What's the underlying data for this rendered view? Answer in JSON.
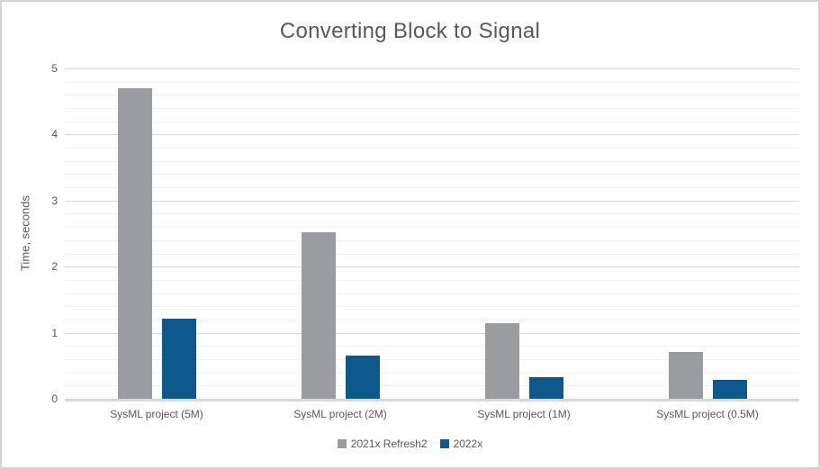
{
  "title": "Converting Block to Signal",
  "colors": {
    "title_text": "#595959",
    "axis_text": "#595959",
    "gridline_major": "#D9D9D9",
    "gridline_minor": "#F2F2F2",
    "axis_line": "#D9D9D9",
    "frame_border": "#D3D3D3",
    "background": "#FFFFFF",
    "series_2021x_refresh2": "#9A9CA0",
    "series_2022x": "#0E598C"
  },
  "chart_data": {
    "type": "bar",
    "title": "Converting Block to Signal",
    "xlabel": "",
    "ylabel": "Time, seconds",
    "ylim": [
      0,
      5
    ],
    "ytick_labels": [
      "0",
      "1",
      "2",
      "3",
      "4",
      "5"
    ],
    "major_gridline_step": 1,
    "minor_gridline_step": 0.2,
    "grid": "horizontal",
    "legend_position": "bottom",
    "categories": [
      "SysML project (5M)",
      "SysML project (2M)",
      "SysML project (1M)",
      "SysML project (0.5M)"
    ],
    "series": [
      {
        "name": "2021x Refresh2",
        "color": "#9A9CA0",
        "values": [
          4.7,
          2.52,
          1.14,
          0.71
        ]
      },
      {
        "name": "2022x",
        "color": "#0E598C",
        "values": [
          1.21,
          0.65,
          0.33,
          0.28
        ]
      }
    ]
  }
}
